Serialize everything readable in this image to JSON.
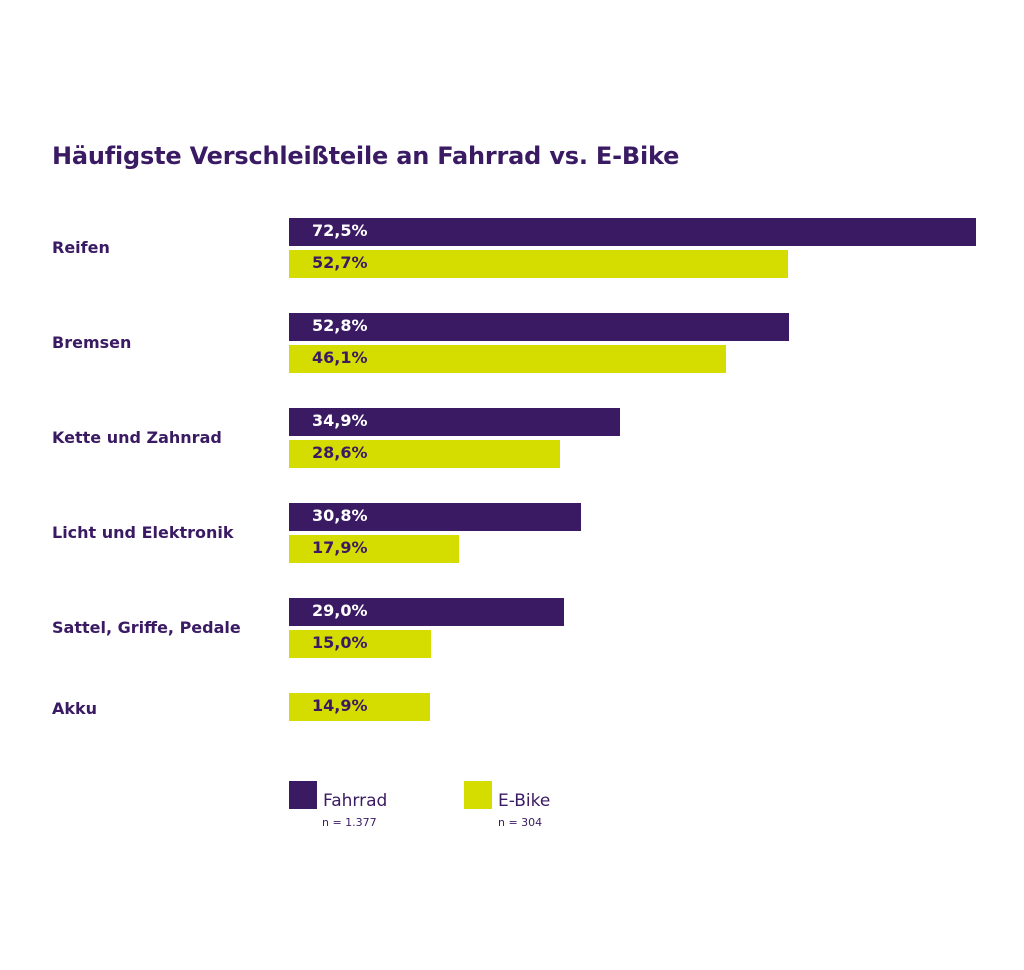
{
  "colors": {
    "fahrrad": "#3a1a63",
    "ebike": "#d5dc00",
    "label_on_fahrrad": "#ffffff",
    "label_on_ebike": "#3a1a63"
  },
  "chart_data": {
    "type": "bar",
    "orientation": "horizontal",
    "title": "Häufigste Verschleißteile an Fahrrad vs. E-Bike",
    "xlabel": "",
    "ylabel": "",
    "grid": false,
    "xlim": [
      0,
      72.5
    ],
    "categories": [
      "Reifen",
      "Bremsen",
      "Kette und Zahnrad",
      "Licht und Elektronik",
      "Sattel, Griffe, Pedale",
      "Akku"
    ],
    "series": [
      {
        "name": "Fahrrad",
        "n_label": "n = 1.377",
        "values": [
          72.5,
          52.8,
          34.9,
          30.8,
          29.0,
          null
        ],
        "labels": [
          "72,5%",
          "52,8%",
          "34,9%",
          "30,8%",
          "29,0%",
          null
        ]
      },
      {
        "name": "E-Bike",
        "n_label": "n = 304",
        "values": [
          52.7,
          46.1,
          28.6,
          17.9,
          15.0,
          14.9
        ],
        "labels": [
          "52,7%",
          "46,1%",
          "28,6%",
          "17,9%",
          "15,0%",
          "14,9%"
        ]
      }
    ],
    "legend": "bottom",
    "data_labels": "inside-start"
  }
}
